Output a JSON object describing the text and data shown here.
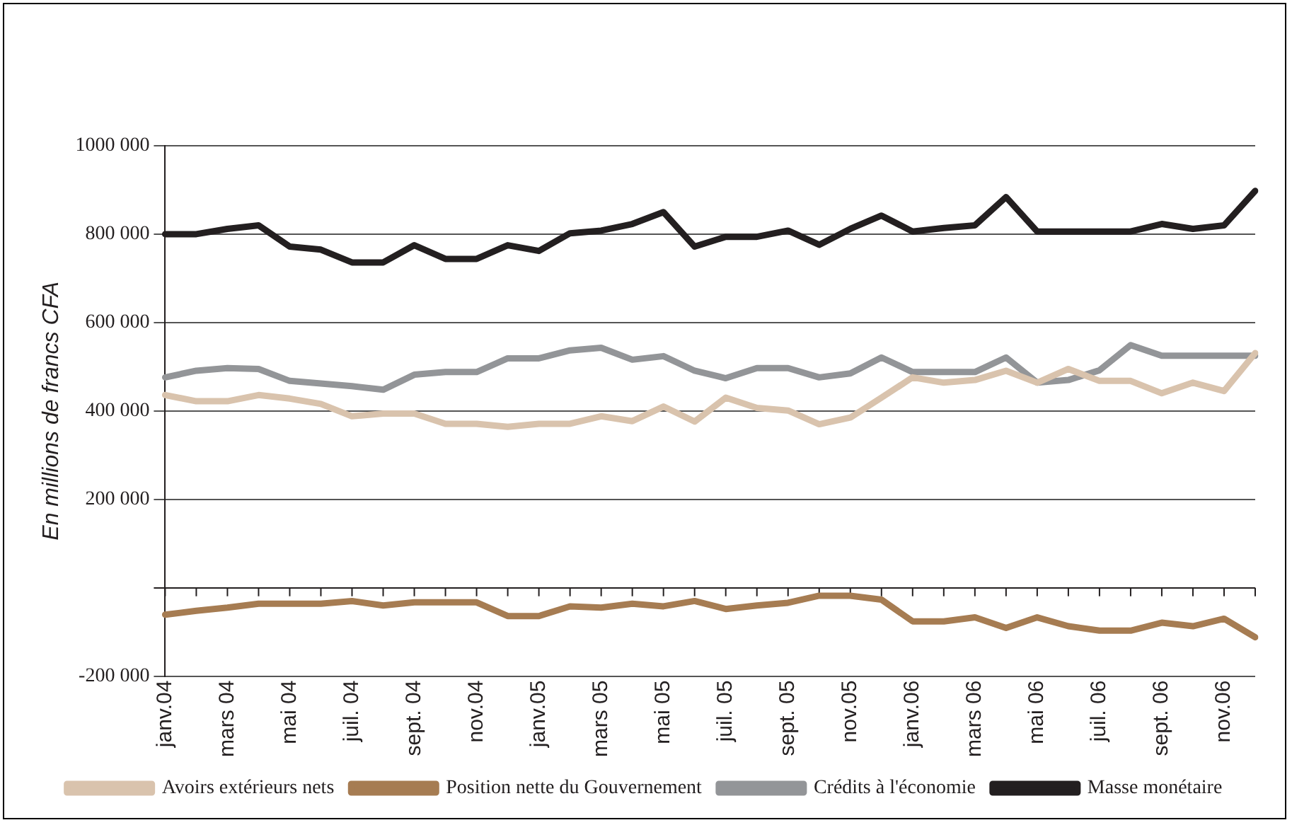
{
  "chart_data": {
    "type": "line",
    "ylabel": "En millions de francs CFA",
    "categories": [
      "janv.04",
      null,
      "mars 04",
      null,
      "mai 04",
      null,
      "juil. 04",
      null,
      "sept. 04",
      null,
      "nov.04",
      null,
      "janv.05",
      null,
      "mars 05",
      null,
      "mai 05",
      null,
      "juil. 05",
      null,
      "sept. 05",
      null,
      "nov.05",
      null,
      "janv.06",
      null,
      "mars 06",
      null,
      "mai 06",
      null,
      "juil. 06",
      null,
      "sept. 06",
      null,
      "nov.06",
      null
    ],
    "series": [
      {
        "name": "Avoirs extérieurs nets",
        "color": "#d9c3ad",
        "values": [
          436000,
          422000,
          422000,
          436000,
          428000,
          416000,
          388000,
          394000,
          394000,
          371000,
          371000,
          364000,
          371000,
          371000,
          388000,
          377000,
          410000,
          376000,
          430000,
          407000,
          401000,
          370000,
          385000,
          430000,
          476000,
          464000,
          470000,
          491000,
          464000,
          495000,
          468000,
          468000,
          440000,
          464000,
          445000,
          531000
        ]
      },
      {
        "name": "Position nette du Gouvernement",
        "color": "#a67c52",
        "values": [
          -61000,
          -52000,
          -45000,
          -36000,
          -36000,
          -36000,
          -30000,
          -40000,
          -33000,
          -33000,
          -33000,
          -64000,
          -64000,
          -42000,
          -45000,
          -36000,
          -42000,
          -30000,
          -48000,
          -40000,
          -34000,
          -18000,
          -18000,
          -27000,
          -76000,
          -76000,
          -67000,
          -91000,
          -67000,
          -87000,
          -97000,
          -97000,
          -79000,
          -87000,
          -70000,
          -112000
        ]
      },
      {
        "name": "Crédits à l'économie",
        "color": "#939598",
        "values": [
          476000,
          491000,
          497000,
          495000,
          468000,
          462000,
          456000,
          448000,
          482000,
          488000,
          488000,
          519000,
          519000,
          537000,
          543000,
          516000,
          524000,
          491000,
          474000,
          497000,
          497000,
          476000,
          485000,
          521000,
          488000,
          488000,
          488000,
          521000,
          464000,
          470000,
          492000,
          549000,
          525000,
          525000,
          525000,
          525000
        ]
      },
      {
        "name": "Masse monétaire",
        "color": "#231f20",
        "values": [
          800000,
          800000,
          812000,
          820000,
          772000,
          765000,
          736000,
          736000,
          775000,
          744000,
          744000,
          775000,
          762000,
          802000,
          808000,
          823000,
          850000,
          772000,
          794000,
          794000,
          808000,
          776000,
          812000,
          842000,
          806000,
          814000,
          820000,
          884000,
          806000,
          806000,
          806000,
          806000,
          823000,
          812000,
          820000,
          898000
        ]
      }
    ],
    "ylim": [
      -200000,
      1000000
    ],
    "yticks": [
      {
        "value": -200000,
        "label": "-200 000"
      },
      {
        "value": 0,
        "label": null
      },
      {
        "value": 200000,
        "label": "200 000"
      },
      {
        "value": 400000,
        "label": "400 000"
      },
      {
        "value": 600000,
        "label": "600 000"
      },
      {
        "value": 800000,
        "label": "800 000"
      },
      {
        "value": 1000000,
        "label": "1000 000"
      }
    ],
    "grid": "y",
    "legend": "bottom",
    "marker": "none",
    "line_style": "solid"
  }
}
